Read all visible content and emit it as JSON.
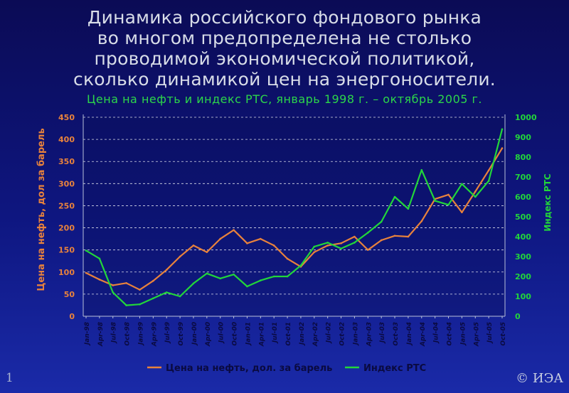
{
  "slide": {
    "title_lines": [
      "Динамика российского фондового рынка",
      "во многом предопределена не столько",
      "проводимой экономической политикой,",
      "сколько динамикой цен на энергоносители."
    ],
    "subtitle": "Цена на нефть и индекс РТС, январь 1998 г. – октябрь 2005 г.",
    "slide_number": "1",
    "copyright": "© ИЭА"
  },
  "colors": {
    "oil": "#e8823c",
    "rts": "#22d63a",
    "left_axis_text": "#e8823c",
    "right_axis_text": "#22d63a",
    "grid": "#ffffff",
    "tick_text": "#0a0a40"
  },
  "chart_data": {
    "type": "line",
    "x": [
      "Jan-98",
      "Apr-98",
      "Jul-98",
      "Oct-98",
      "Jan-99",
      "Apr-99",
      "Jul-99",
      "Oct-99",
      "Jan-00",
      "Apr-00",
      "Jul-00",
      "Oct-00",
      "Jan-01",
      "Apr-01",
      "Jul-01",
      "Oct-01",
      "Jan-02",
      "Apr-02",
      "Jul-02",
      "Oct-02",
      "Jan-03",
      "Apr-03",
      "Jul-03",
      "Oct-03",
      "Jan-04",
      "Apr-04",
      "Jul-04",
      "Oct-04",
      "Jan-05",
      "Apr-05",
      "Jul-05",
      "Oct-05"
    ],
    "series": [
      {
        "name": "Цена на нефть, дол. за барель",
        "axis": "left",
        "values": [
          98,
          83,
          70,
          75,
          60,
          80,
          105,
          135,
          160,
          145,
          175,
          195,
          165,
          175,
          160,
          130,
          112,
          145,
          160,
          165,
          180,
          150,
          172,
          182,
          180,
          215,
          265,
          275,
          235,
          282,
          330,
          380
        ]
      },
      {
        "name": "Индекс РТС",
        "axis": "right",
        "values": [
          330,
          290,
          120,
          55,
          60,
          90,
          120,
          100,
          165,
          215,
          190,
          210,
          150,
          180,
          200,
          200,
          255,
          350,
          370,
          340,
          370,
          420,
          475,
          600,
          540,
          735,
          580,
          560,
          665,
          600,
          680,
          940
        ]
      }
    ],
    "title": "",
    "ylabel": "Цена на нефть, дол за барель",
    "y2label": "Индекс РТС",
    "ylim": [
      0,
      450
    ],
    "y2lim": [
      0,
      1000
    ],
    "yticks": [
      "0",
      "50",
      "100",
      "150",
      "200",
      "250",
      "300",
      "350",
      "400",
      "450"
    ],
    "y2ticks": [
      "0",
      "100",
      "200",
      "300",
      "400",
      "500",
      "600",
      "700",
      "800",
      "900",
      "1000"
    ],
    "grid": "horizontal-dashed",
    "legend_position": "bottom-center"
  }
}
